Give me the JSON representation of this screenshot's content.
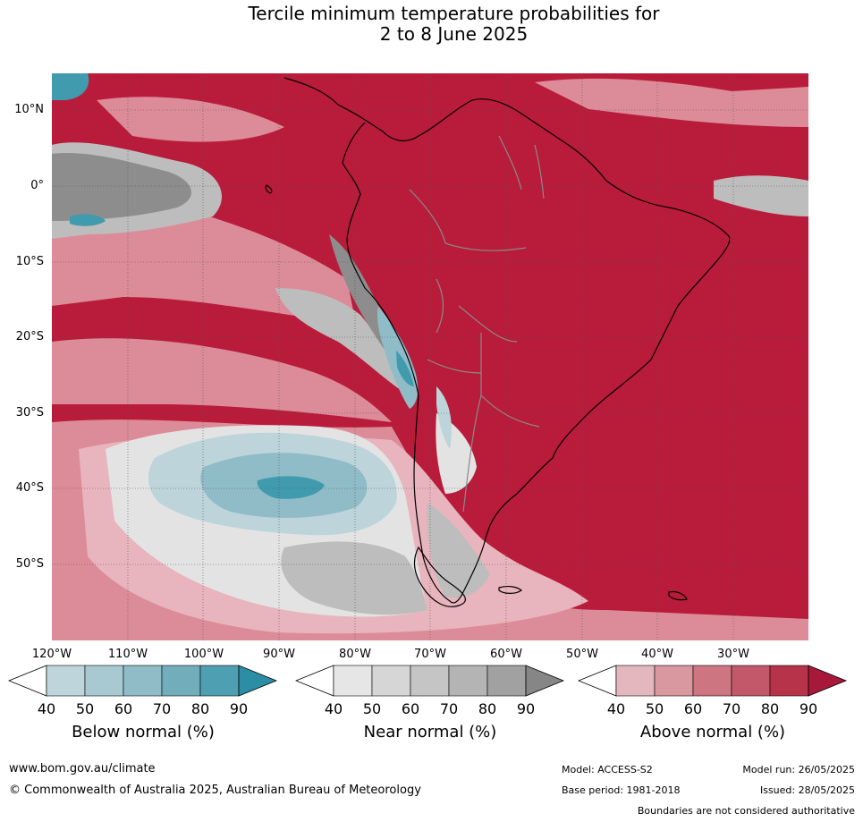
{
  "title": {
    "line1": "Tercile minimum temperature probabilities for",
    "line2": "2 to 8 June 2025"
  },
  "map": {
    "lat_labels": [
      "10°N",
      "0°",
      "10°S",
      "20°S",
      "30°S",
      "40°S",
      "50°S"
    ],
    "lon_labels": [
      "120°W",
      "110°W",
      "100°W",
      "90°W",
      "80°W",
      "70°W",
      "60°W",
      "50°W",
      "40°W",
      "30°W"
    ],
    "colors": {
      "ocean_above": "#b81c3a",
      "land_above": "#c94d62",
      "light_above": "#dc8c99",
      "pale_above": "#e8b4bd",
      "near_dark": "#8d8d8d",
      "near_mid": "#bdbdbd",
      "near_light": "#e3e3e3",
      "below_pale": "#bcd4da",
      "below_mid": "#8fbcc7",
      "below_dark": "#3f9bad",
      "coast": "#000000",
      "border": "#8a8a8a"
    }
  },
  "colorbars": [
    {
      "title": "Below normal (%)",
      "ticks": [
        "40",
        "50",
        "60",
        "70",
        "80",
        "90"
      ],
      "colors": [
        "#bdd5db",
        "#a8c9d1",
        "#8fbcc7",
        "#72adbc",
        "#4f9fb2",
        "#2c8ea5"
      ]
    },
    {
      "title": "Near normal (%)",
      "ticks": [
        "40",
        "50",
        "60",
        "70",
        "80",
        "90"
      ],
      "colors": [
        "#e6e6e6",
        "#d6d6d6",
        "#c5c5c5",
        "#b4b4b4",
        "#a1a1a1",
        "#868686"
      ]
    },
    {
      "title": "Above normal (%)",
      "ticks": [
        "40",
        "50",
        "60",
        "70",
        "80",
        "90"
      ],
      "colors": [
        "#e4b7be",
        "#d9979f",
        "#cd7580",
        "#c3586a",
        "#b73349",
        "#a8183a"
      ]
    }
  ],
  "footer": {
    "website": "www.bom.gov.au/climate",
    "copyright": "© Commonwealth of Australia 2025, Australian Bureau of Meteorology",
    "model": "Model: ACCESS-S2",
    "model_run": "Model run: 26/05/2025",
    "base_period": "Base period: 1981-2018",
    "issued": "Issued: 28/05/2025",
    "disclaimer": "Boundaries are not considered authoritative"
  }
}
